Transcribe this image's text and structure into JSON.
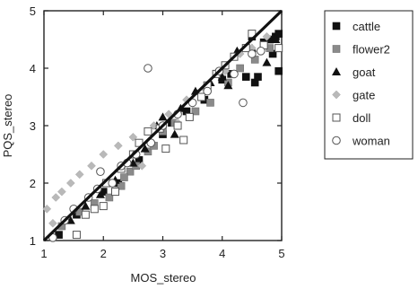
{
  "chart_data": {
    "type": "scatter",
    "xlabel": "MOS_stereo",
    "ylabel": "PQS_stereo",
    "xlim": [
      1,
      5
    ],
    "ylim": [
      1,
      5
    ],
    "xticks": [
      "1",
      "2",
      "3",
      "4",
      "5"
    ],
    "yticks": [
      "1",
      "2",
      "3",
      "4",
      "5"
    ],
    "legend_position": "right",
    "reference_line": {
      "x": [
        1,
        5
      ],
      "y": [
        1,
        5
      ]
    },
    "series": [
      {
        "name": "cattle",
        "marker": "filled-square",
        "color": "#111111",
        "points": [
          [
            1.25,
            1.1
          ],
          [
            1.55,
            1.45
          ],
          [
            2.0,
            1.85
          ],
          [
            2.25,
            2.0
          ],
          [
            2.6,
            2.4
          ],
          [
            3.0,
            2.85
          ],
          [
            3.15,
            3.05
          ],
          [
            3.4,
            3.25
          ],
          [
            3.7,
            3.45
          ],
          [
            4.0,
            3.8
          ],
          [
            4.15,
            3.9
          ],
          [
            4.4,
            3.85
          ],
          [
            4.55,
            3.75
          ],
          [
            4.6,
            3.85
          ],
          [
            4.7,
            4.45
          ],
          [
            4.8,
            4.5
          ],
          [
            4.9,
            4.55
          ],
          [
            4.95,
            4.6
          ],
          [
            4.95,
            3.95
          ],
          [
            4.85,
            4.25
          ],
          [
            4.5,
            4.55
          ]
        ]
      },
      {
        "name": "flower2",
        "marker": "gray-square",
        "color": "#8a8a8a",
        "points": [
          [
            1.3,
            1.25
          ],
          [
            1.6,
            1.5
          ],
          [
            1.85,
            1.65
          ],
          [
            2.1,
            1.75
          ],
          [
            2.3,
            1.95
          ],
          [
            2.45,
            2.2
          ],
          [
            2.55,
            2.3
          ],
          [
            2.75,
            2.55
          ],
          [
            3.0,
            2.9
          ],
          [
            3.2,
            3.05
          ],
          [
            3.55,
            3.25
          ],
          [
            3.8,
            3.4
          ],
          [
            4.1,
            3.75
          ],
          [
            4.3,
            4.0
          ],
          [
            4.55,
            4.15
          ],
          [
            4.8,
            4.35
          ],
          [
            2.35,
            2.1
          ],
          [
            2.85,
            2.65
          ]
        ]
      },
      {
        "name": "goat",
        "marker": "filled-triangle",
        "color": "#111111",
        "points": [
          [
            1.45,
            1.35
          ],
          [
            1.7,
            1.6
          ],
          [
            1.95,
            1.8
          ],
          [
            2.2,
            2.05
          ],
          [
            2.5,
            2.35
          ],
          [
            2.9,
            3.0
          ],
          [
            3.0,
            3.15
          ],
          [
            3.3,
            3.3
          ],
          [
            3.55,
            3.6
          ],
          [
            3.8,
            3.75
          ],
          [
            4.0,
            3.85
          ],
          [
            4.1,
            3.7
          ],
          [
            4.25,
            4.3
          ],
          [
            4.5,
            4.35
          ],
          [
            4.75,
            4.1
          ],
          [
            4.9,
            4.5
          ],
          [
            3.2,
            2.85
          ],
          [
            2.7,
            2.6
          ]
        ]
      },
      {
        "name": "gate",
        "marker": "gray-diamond",
        "color": "#b9b9b9",
        "points": [
          [
            1.05,
            1.55
          ],
          [
            1.2,
            1.75
          ],
          [
            1.3,
            1.85
          ],
          [
            1.45,
            2.0
          ],
          [
            1.6,
            2.15
          ],
          [
            1.8,
            2.3
          ],
          [
            2.0,
            2.5
          ],
          [
            2.25,
            2.65
          ],
          [
            2.5,
            2.8
          ],
          [
            2.85,
            3.0
          ],
          [
            3.1,
            3.2
          ],
          [
            3.4,
            3.45
          ],
          [
            3.7,
            3.65
          ],
          [
            4.05,
            3.95
          ],
          [
            4.3,
            4.25
          ],
          [
            4.5,
            4.35
          ],
          [
            4.75,
            4.55
          ],
          [
            1.15,
            1.3
          ],
          [
            2.65,
            2.3
          ],
          [
            3.25,
            3.05
          ]
        ]
      },
      {
        "name": "doll",
        "marker": "open-square",
        "color": "#555555",
        "points": [
          [
            1.55,
            1.1
          ],
          [
            1.7,
            1.45
          ],
          [
            1.85,
            1.55
          ],
          [
            2.0,
            1.6
          ],
          [
            2.05,
            2.0
          ],
          [
            2.3,
            2.25
          ],
          [
            2.5,
            2.5
          ],
          [
            2.6,
            2.7
          ],
          [
            2.75,
            2.9
          ],
          [
            2.95,
            2.95
          ],
          [
            3.05,
            2.6
          ],
          [
            3.25,
            3.0
          ],
          [
            3.45,
            3.15
          ],
          [
            3.65,
            3.5
          ],
          [
            3.75,
            3.7
          ],
          [
            3.9,
            3.9
          ],
          [
            4.05,
            4.05
          ],
          [
            4.2,
            4.2
          ],
          [
            4.4,
            4.35
          ],
          [
            4.5,
            4.6
          ],
          [
            4.7,
            4.4
          ],
          [
            4.95,
            4.35
          ],
          [
            3.35,
            2.75
          ],
          [
            2.2,
            1.85
          ]
        ]
      },
      {
        "name": "woman",
        "marker": "open-circle",
        "color": "#555555",
        "points": [
          [
            1.15,
            1.05
          ],
          [
            1.35,
            1.35
          ],
          [
            1.5,
            1.55
          ],
          [
            1.75,
            1.75
          ],
          [
            1.9,
            1.9
          ],
          [
            2.15,
            2.0
          ],
          [
            2.3,
            2.3
          ],
          [
            2.55,
            2.5
          ],
          [
            2.8,
            2.7
          ],
          [
            2.75,
            4.0
          ],
          [
            3.0,
            3.0
          ],
          [
            3.25,
            3.2
          ],
          [
            3.5,
            3.4
          ],
          [
            3.75,
            3.6
          ],
          [
            3.95,
            3.95
          ],
          [
            4.2,
            3.9
          ],
          [
            4.35,
            3.4
          ],
          [
            4.5,
            4.25
          ],
          [
            4.65,
            4.3
          ],
          [
            1.95,
            2.2
          ],
          [
            2.4,
            2.35
          ]
        ]
      }
    ]
  }
}
